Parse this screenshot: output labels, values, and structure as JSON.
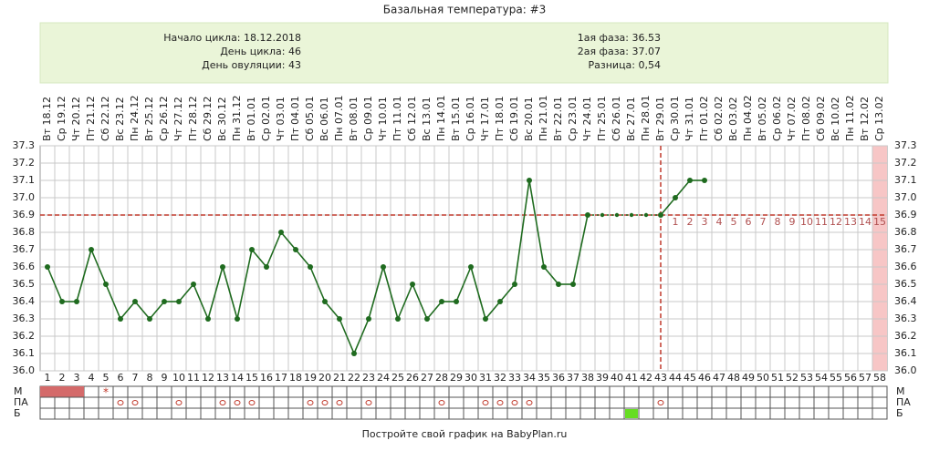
{
  "chart_data": {
    "type": "line",
    "title": "Базальная температура: #3",
    "info_left": [
      "Начало цикла: 18.12.2018",
      "День цикла: 46",
      "День овуляции: 43"
    ],
    "info_right": [
      "1ая фаза: 36.53",
      "2ая фаза: 37.07",
      "Разница: 0,54"
    ],
    "footer": "Постройте свой график на BabyPlan.ru",
    "dates": [
      "Вт 18.12",
      "Ср 19.12",
      "Чт 20.12",
      "Пт 21.12",
      "Сб 22.12",
      "Вс 23.12",
      "Пн 24.12",
      "Вт 25.12",
      "Ср 26.12",
      "Чт 27.12",
      "Пт 28.12",
      "Сб 29.12",
      "Вс 30.12",
      "Пн 31.12",
      "Вт 01.01",
      "Ср 02.01",
      "Чт 03.01",
      "Пт 04.01",
      "Сб 05.01",
      "Вс 06.01",
      "Пн 07.01",
      "Вт 08.01",
      "Ср 09.01",
      "Чт 10.01",
      "Пт 11.01",
      "Сб 12.01",
      "Вс 13.01",
      "Пн 14.01",
      "Вт 15.01",
      "Ср 16.01",
      "Чт 17.01",
      "Пт 18.01",
      "Сб 19.01",
      "Вс 20.01",
      "Пн 21.01",
      "Вт 22.01",
      "Ср 23.01",
      "Чт 24.01",
      "Пт 25.01",
      "Сб 26.01",
      "Вс 27.01",
      "Пн 28.01",
      "Вт 29.01",
      "Ср 30.01",
      "Чт 31.01",
      "Пт 01.02",
      "Сб 02.02",
      "Вс 03.02",
      "Пн 04.02",
      "Вт 05.02",
      "Ср 06.02",
      "Чт 07.02",
      "Пт 08.02",
      "Сб 09.02",
      "Вс 10.02",
      "Пн 11.02",
      "Вт 12.02",
      "Ср 13.02"
    ],
    "days": [
      1,
      2,
      3,
      4,
      5,
      6,
      7,
      8,
      9,
      10,
      11,
      12,
      13,
      14,
      15,
      16,
      17,
      18,
      19,
      20,
      21,
      22,
      23,
      24,
      25,
      26,
      27,
      28,
      29,
      30,
      31,
      32,
      33,
      34,
      35,
      36,
      37,
      38,
      39,
      40,
      41,
      42,
      43,
      44,
      45,
      46,
      47,
      48,
      49,
      50,
      51,
      52,
      53,
      54,
      55,
      56,
      57,
      58
    ],
    "values": [
      36.6,
      36.4,
      36.4,
      36.7,
      36.5,
      36.3,
      36.4,
      36.3,
      36.4,
      36.4,
      36.5,
      36.3,
      36.6,
      36.3,
      36.7,
      36.6,
      36.8,
      36.7,
      36.6,
      36.4,
      36.3,
      36.1,
      36.3,
      36.6,
      36.3,
      36.5,
      36.3,
      36.4,
      36.4,
      36.6,
      36.3,
      36.4,
      36.5,
      37.1,
      36.6,
      36.5,
      36.5,
      36.9,
      36.9,
      36.9,
      36.9,
      36.9,
      36.9,
      37.0,
      37.1,
      37.1,
      null,
      null,
      null,
      null,
      null,
      null,
      null,
      null,
      null,
      null,
      null,
      null
    ],
    "estimated_days": [
      39,
      40,
      41,
      42
    ],
    "color": "#1f6b1f",
    "cover_line": 36.9,
    "ovulation_day": 43,
    "phase2_days": [
      1,
      2,
      3,
      4,
      5,
      6,
      7,
      8,
      9,
      10,
      11,
      12,
      13,
      14,
      15
    ],
    "expected_day": 58,
    "ylim": [
      36.0,
      37.3
    ],
    "yticks": [
      {
        "value": 36.0,
        "label": "36.0"
      },
      36.1,
      36.2,
      36.3,
      36.4,
      36.5,
      36.6,
      36.7,
      36.8,
      36.9,
      {
        "value": 37.0,
        "label": "37.0"
      },
      37.1,
      37.2,
      37.3
    ],
    "rows": [
      {
        "label": "М",
        "fill_days": [
          1,
          2,
          3
        ],
        "star_days": [
          5
        ]
      },
      {
        "label": "ПА",
        "circle_days": [
          6,
          7,
          10,
          13,
          14,
          15,
          19,
          20,
          21,
          23,
          28,
          31,
          32,
          33,
          34,
          43
        ]
      },
      {
        "label": "Б",
        "green_days": [
          41
        ]
      }
    ]
  }
}
